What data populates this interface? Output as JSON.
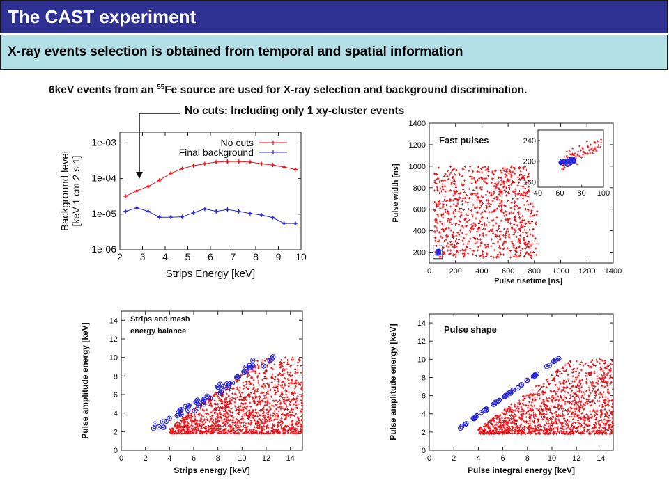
{
  "slide": {
    "title": "The CAST experiment",
    "subtitle": "X-ray events selection is obtained from temporal and spatial information",
    "caption_source_pre": "6keV events from an ",
    "caption_source_sup": "55",
    "caption_source_post": "Fe source are used for X-ray selection and background discrimination.",
    "caption_arrow": "No cuts: Including only 1 xy-cluster events"
  },
  "colors": {
    "title_bg": "#2e3192",
    "subtitle_bg": "#b3e0e6",
    "red": "#e8161b",
    "blue": "#2a2ad8"
  },
  "chart_data": [
    {
      "id": "background",
      "type": "line",
      "xlabel": "Strips Energy [keV]",
      "ylabel": "Background level",
      "ylabel_unit": "[keV-1 cm-2 s-1]",
      "xlim": [
        2,
        10
      ],
      "ylim": [
        1e-06,
        0.002
      ],
      "yscale": "log",
      "xticks": [
        "2",
        "3",
        "4",
        "5",
        "6",
        "7",
        "8",
        "9",
        "10"
      ],
      "yticks": [
        "1e-06",
        "1e-05",
        "1e-04",
        "1e-03"
      ],
      "legend": "top-right",
      "series": [
        {
          "name": "No cuts",
          "color": "#e8161b",
          "x": [
            2.25,
            2.75,
            3.25,
            3.75,
            4.25,
            4.75,
            5.25,
            5.75,
            6.25,
            6.75,
            7.25,
            7.75,
            8.25,
            8.75,
            9.25,
            9.75
          ],
          "y": [
            3.2e-05,
            4.5e-05,
            6e-05,
            9e-05,
            0.00014,
            0.00019,
            0.00023,
            0.00026,
            0.00029,
            0.0003,
            0.0003,
            0.00029,
            0.00026,
            0.00024,
            0.00021,
            0.00018
          ]
        },
        {
          "name": "Final background",
          "color": "#2a2ad8",
          "x": [
            2.25,
            2.75,
            3.25,
            3.75,
            4.25,
            4.75,
            5.25,
            5.75,
            6.25,
            6.75,
            7.25,
            7.75,
            8.25,
            8.75,
            9.25,
            9.75
          ],
          "y": [
            1.2e-05,
            1.5e-05,
            1.2e-05,
            8.2e-06,
            8.2e-06,
            8.4e-06,
            1.1e-05,
            1.4e-05,
            1.2e-05,
            1.35e-05,
            1.2e-05,
            1.05e-05,
            9.5e-06,
            8e-06,
            5.5e-06,
            5.5e-06
          ]
        }
      ]
    },
    {
      "id": "fast-pulses",
      "type": "scatter",
      "title": "Fast pulses",
      "xlabel": "Pulse risetime [ns]",
      "ylabel": "Pulse width [ns]",
      "xlim": [
        0,
        1400
      ],
      "ylim": [
        100,
        1400
      ],
      "xticks": [
        "0",
        "200",
        "400",
        "600",
        "800",
        "1000",
        "1200",
        "1400"
      ],
      "yticks": [
        "200",
        "400",
        "600",
        "800",
        "1000",
        "1200",
        "1400"
      ],
      "inset": {
        "xlim": [
          40,
          100
        ],
        "ylim": [
          150,
          260
        ],
        "xticks": [
          "40",
          "60",
          "80",
          "100"
        ],
        "yticks": [
          "160",
          "200",
          "240"
        ]
      }
    },
    {
      "id": "energy-balance",
      "type": "scatter",
      "title": "Strips and mesh energy balance",
      "xlabel": "Strips energy [keV]",
      "ylabel": "Pulse amplitude energy [keV]",
      "xlim": [
        0,
        15
      ],
      "ylim": [
        0,
        15
      ],
      "xticks": [
        "0",
        "2",
        "4",
        "6",
        "8",
        "10",
        "12",
        "14"
      ],
      "yticks": [
        "0",
        "2",
        "4",
        "6",
        "8",
        "10",
        "12",
        "14"
      ]
    },
    {
      "id": "pulse-shape",
      "type": "scatter",
      "title": "Pulse shape",
      "xlabel": "Pulse integral energy [keV]",
      "ylabel": "Pulse amplitude energy [keV]",
      "xlim": [
        0,
        15
      ],
      "ylim": [
        0,
        15
      ],
      "xticks": [
        "0",
        "2",
        "4",
        "6",
        "8",
        "10",
        "12",
        "14"
      ],
      "yticks": [
        "0",
        "2",
        "4",
        "6",
        "8",
        "10",
        "12",
        "14"
      ]
    }
  ]
}
